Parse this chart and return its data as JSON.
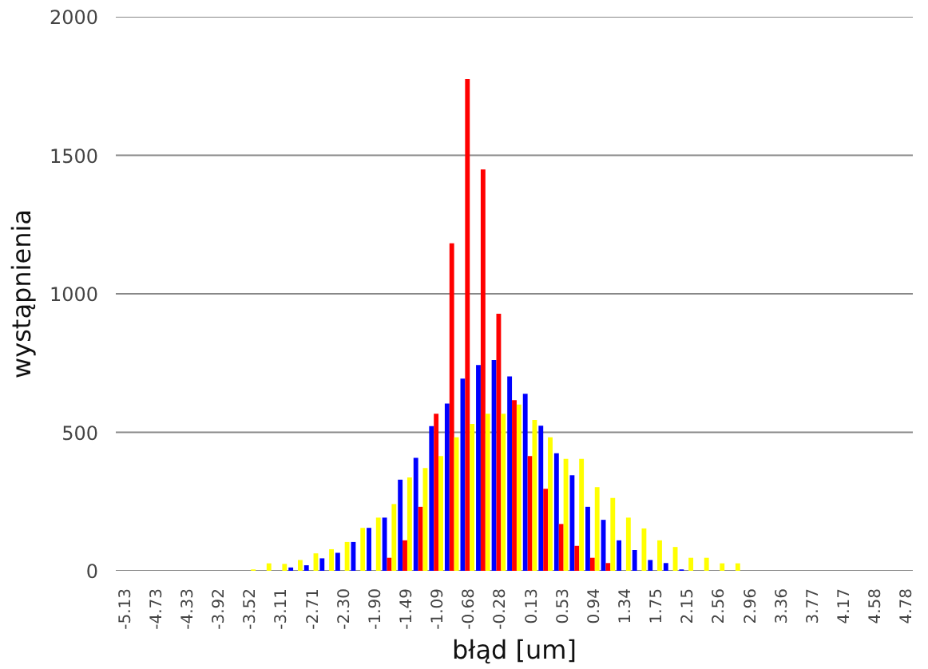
{
  "chart_data": {
    "type": "bar",
    "xlabel": "błąd [um]",
    "ylabel": "wystąpnienia",
    "categories": [
      "-5.13",
      null,
      "-4.73",
      null,
      "-4.33",
      null,
      "-3.92",
      null,
      "-3.52",
      null,
      "-3.11",
      null,
      "-2.71",
      null,
      "-2.30",
      null,
      "-1.90",
      null,
      "-1.49",
      null,
      "-1.09",
      null,
      "-0.68",
      null,
      "-0.28",
      null,
      "0.13",
      null,
      "0.53",
      null,
      "0.94",
      null,
      "1.34",
      null,
      "1.75",
      null,
      "2.15",
      null,
      "2.56",
      null,
      "2.96",
      null,
      "3.36",
      null,
      "3.77",
      null,
      "4.17",
      null,
      "4.58",
      null,
      "4.78"
    ],
    "series": [
      {
        "color": "#0000ff",
        "values": [
          null,
          null,
          null,
          null,
          null,
          null,
          null,
          null,
          null,
          null,
          null,
          12,
          20,
          45,
          65,
          104,
          155,
          192,
          329,
          408,
          522,
          604,
          694,
          743,
          761,
          702,
          639,
          524,
          424,
          345,
          231,
          184,
          110,
          75,
          39,
          28,
          5,
          null,
          null,
          null,
          null,
          null,
          null,
          null,
          null,
          null,
          null,
          null,
          null,
          null,
          null
        ]
      },
      {
        "color": "#ff0000",
        "values": [
          null,
          null,
          null,
          null,
          null,
          null,
          null,
          null,
          null,
          null,
          null,
          null,
          null,
          null,
          null,
          null,
          null,
          47,
          110,
          231,
          567,
          1182,
          1775,
          1449,
          928,
          616,
          414,
          296,
          169,
          90,
          47,
          28,
          null,
          null,
          null,
          null,
          null,
          null,
          null,
          null,
          null,
          null,
          null,
          null,
          null,
          null,
          null,
          null,
          null,
          null,
          null
        ]
      },
      {
        "color": "#ffff00",
        "values": [
          null,
          null,
          null,
          null,
          null,
          null,
          null,
          null,
          5,
          27,
          25,
          39,
          63,
          78,
          104,
          155,
          192,
          241,
          337,
          371,
          414,
          482,
          530,
          567,
          567,
          600,
          545,
          482,
          404,
          404,
          302,
          263,
          192,
          153,
          110,
          86,
          47,
          47,
          27,
          27,
          null,
          null,
          null,
          null,
          null,
          null,
          null,
          null,
          null,
          null,
          null
        ]
      }
    ],
    "ylim": [
      0,
      2000
    ],
    "yticks": [
      0,
      500,
      1000,
      1500,
      2000
    ],
    "grid": "y"
  }
}
